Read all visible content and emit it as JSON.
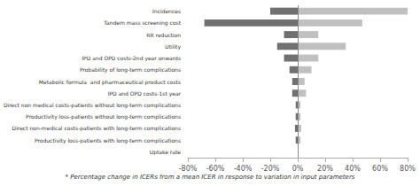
{
  "chart_data": {
    "type": "bar",
    "orientation": "horizontal",
    "xlabel": "* Percentage change in ICERs from a mean ICER in response to variation in input parameters",
    "categories": [
      "Incidences",
      "Tandem mass screening cost",
      "RR reduction",
      "Utility",
      "IPD and OPD costs-2nd year onwards",
      "Probability of long-term complications",
      "Metabolic formula  and pharmaceutical product costs",
      "IPD and OPD costs-1st year",
      "Direct non medical costs-patients without long-term complications",
      "Productivity loss-patients without long-term complications",
      "Direct non-medical costs-patients with long-term complications",
      "Productivity loss-patients with long-term complications",
      "Uptake rate"
    ],
    "series": [
      {
        "color": "#707070",
        "values": [
          -20,
          -68,
          -10,
          -15,
          -10,
          -6,
          -4,
          -4,
          -1.5,
          -1.5,
          -2,
          -1.5,
          0
        ]
      },
      {
        "color": "#c0c0c0",
        "values": [
          80,
          47,
          15,
          35,
          15,
          10,
          5,
          6,
          2.0,
          2.0,
          2.5,
          2.0,
          0
        ]
      }
    ],
    "xlim": [
      -80,
      80
    ],
    "xticks": [
      {
        "value": -80,
        "label": "-80%"
      },
      {
        "value": -60,
        "label": "-60%"
      },
      {
        "value": -40,
        "label": "-40%"
      },
      {
        "value": -20,
        "label": "-20%"
      },
      {
        "value": 0,
        "label": "0%"
      },
      {
        "value": 20,
        "label": "20%"
      },
      {
        "value": 40,
        "label": "40%"
      },
      {
        "value": 60,
        "label": "60%"
      },
      {
        "value": 80,
        "label": "80%"
      }
    ],
    "grid": false
  }
}
